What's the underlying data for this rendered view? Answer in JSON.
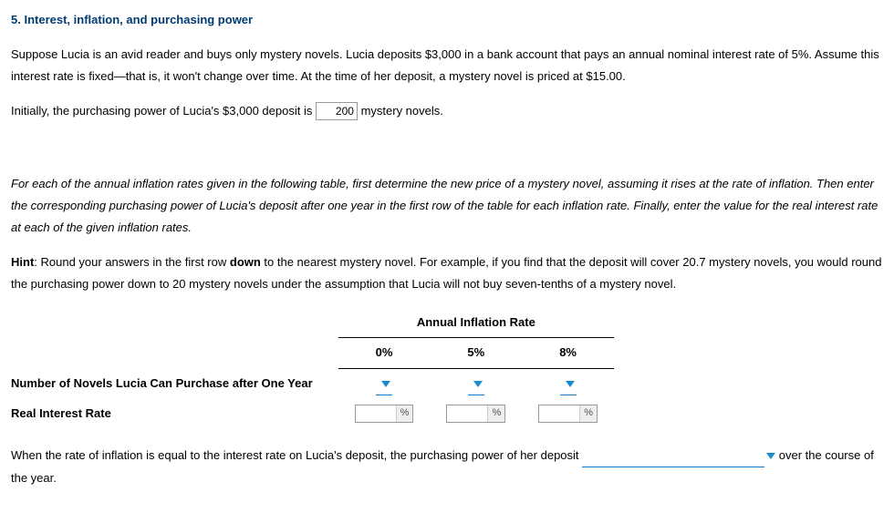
{
  "title": "5. Interest, inflation, and purchasing power",
  "p1": "Suppose Lucia is an avid reader and buys only mystery novels. Lucia deposits $3,000 in a bank account that pays an annual nominal interest rate of 5%. Assume this interest rate is fixed—that is, it won't change over time. At the time of her deposit, a mystery novel is priced at $15.00.",
  "p2a": "Initially, the purchasing power of Lucia's $3,000 deposit is ",
  "p2_input_value": "200",
  "p2b": " mystery novels.",
  "p3": "For each of the annual inflation rates given in the following table, first determine the new price of a mystery novel, assuming it rises at the rate of inflation. Then enter the corresponding purchasing power of Lucia's deposit after one year in the first row of the table for each inflation rate. Finally, enter the value for the real interest rate at each of the given inflation rates.",
  "hint_label": "Hint",
  "hint_text": ": Round your answers in the first row down to the nearest mystery novel. For example, if you find that the deposit will cover 20.7 mystery novels, you would round the purchasing power down to 20 mystery novels under the assumption that Lucia will not buy seven-tenths of a mystery novel.",
  "down_word": "down",
  "table": {
    "super_header": "Annual Inflation Rate",
    "columns": [
      "0%",
      "5%",
      "8%"
    ],
    "row1_label": "Number of Novels Lucia Can Purchase after One Year",
    "row2_label": "Real Interest Rate",
    "pct_symbol": "%"
  },
  "p4a": "When the rate of inflation is equal to the interest rate on Lucia's deposit, the purchasing power of her deposit ",
  "p4b": " over the course of the year."
}
